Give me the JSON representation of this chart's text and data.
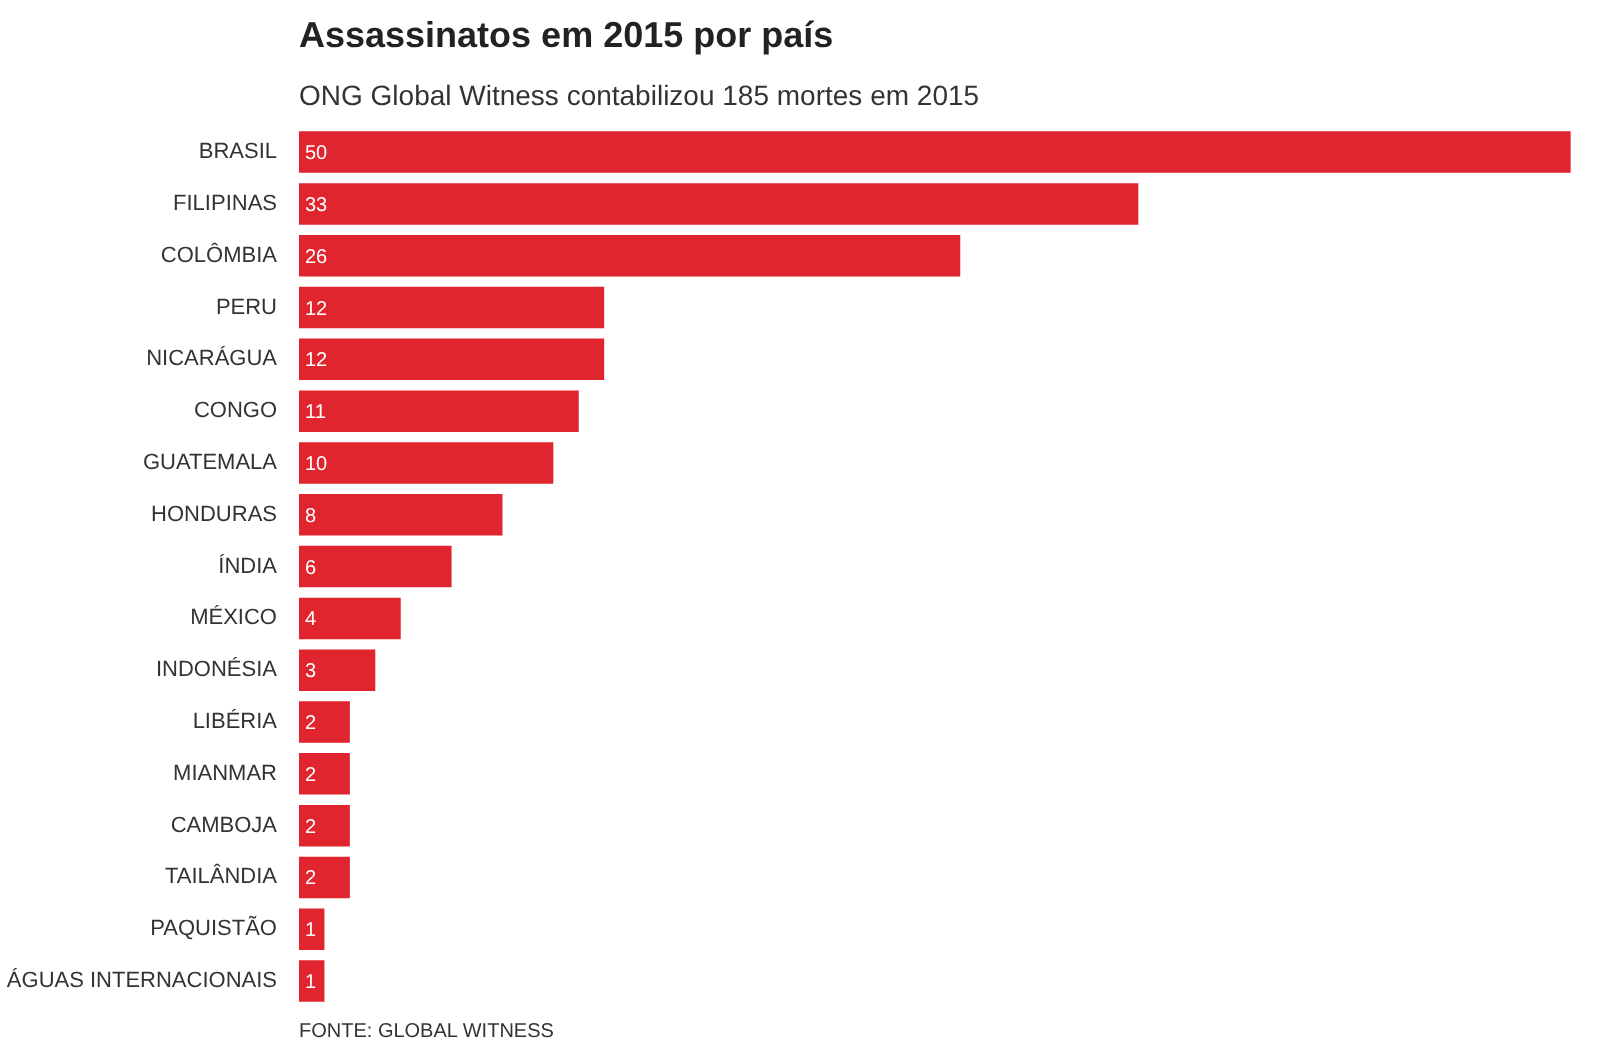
{
  "chart_data": {
    "type": "bar",
    "orientation": "horizontal",
    "title": "Assassinatos em 2015 por país",
    "subtitle": "ONG Global Witness contabilizou 185 mortes em 2015",
    "categories": [
      "BRASIL",
      "FILIPINAS",
      "COLÔMBIA",
      "PERU",
      "NICARÁGUA",
      "CONGO",
      "GUATEMALA",
      "HONDURAS",
      "ÍNDIA",
      "MÉXICO",
      "INDONÉSIA",
      "LIBÉRIA",
      "MIANMAR",
      "CAMBOJA",
      "TAILÂNDIA",
      "PAQUISTÃO",
      "ÁGUAS INTERNACIONAIS"
    ],
    "values": [
      50,
      33,
      26,
      12,
      12,
      11,
      10,
      8,
      6,
      4,
      3,
      2,
      2,
      2,
      2,
      1,
      1
    ],
    "color": "#e0252f",
    "data_labels": true,
    "grid": false,
    "annotations": [
      "FONTE: GLOBAL WITNESS"
    ]
  }
}
